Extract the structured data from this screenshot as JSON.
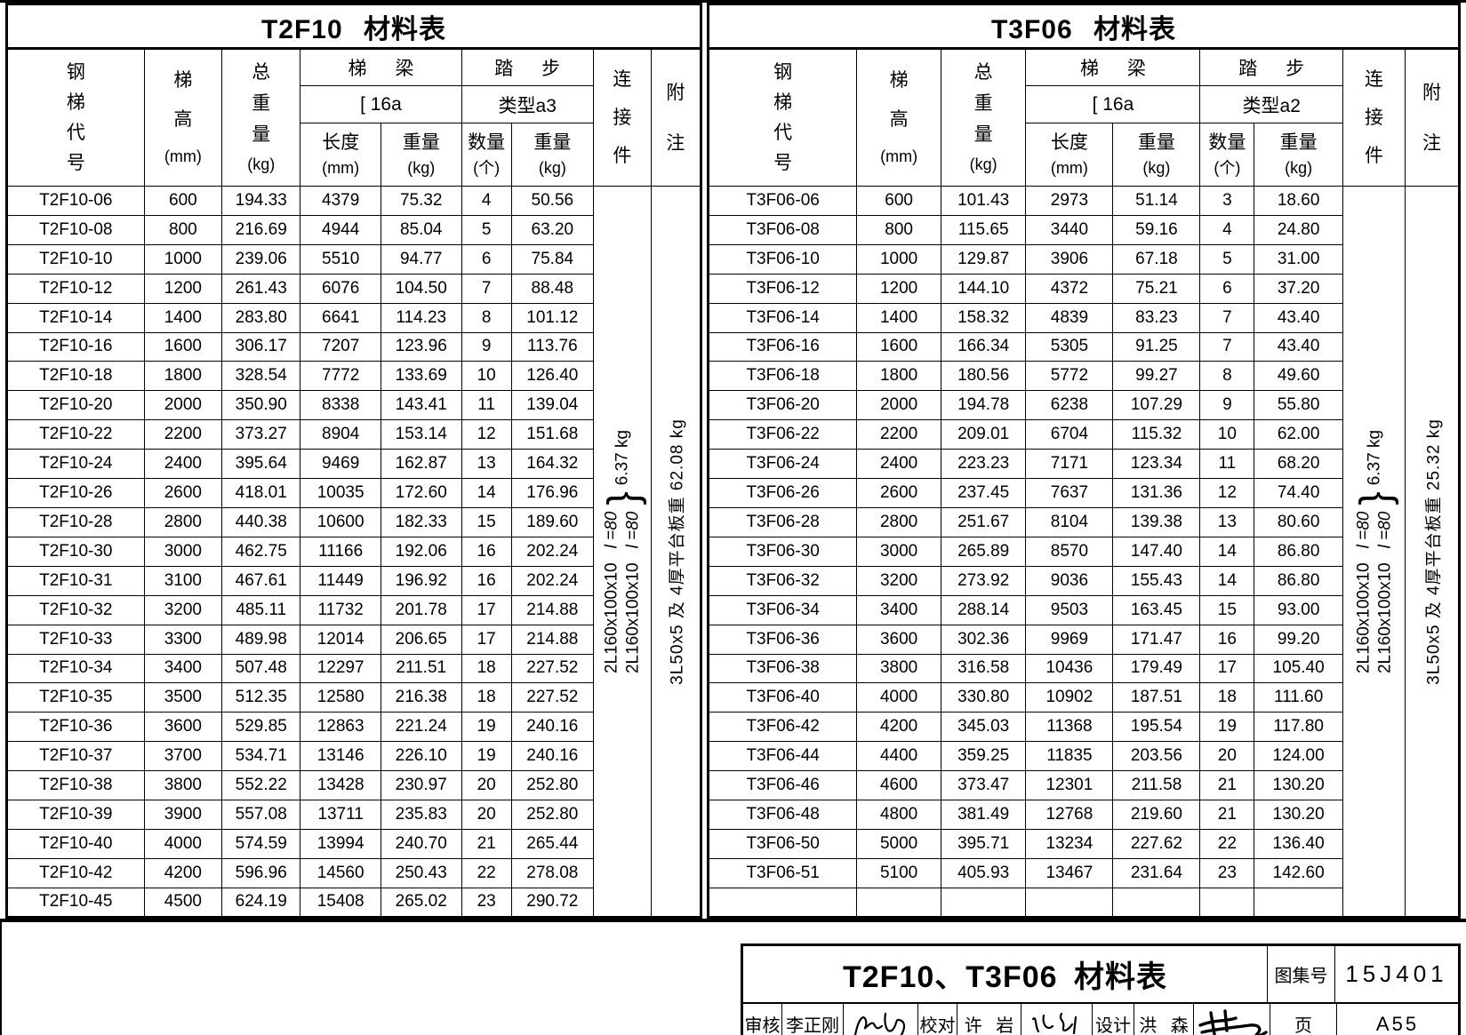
{
  "tables": [
    {
      "title": "T2F10 材料表",
      "header": {
        "code": "钢梯代号",
        "height": "梯高",
        "height_unit": "(mm)",
        "total": "总重量",
        "total_unit": "(kg)",
        "beam_group": "梯 梁",
        "beam_type": "[ 16a",
        "len": "长度",
        "len_unit": "(mm)",
        "beam_wt": "重量",
        "beam_wt_unit": "(kg)",
        "step_group": "踏 步",
        "step_type": "类型a3",
        "qty": "数量",
        "qty_unit": "(个)",
        "step_wt": "重量",
        "step_wt_unit": "(kg)",
        "conn": "连接件",
        "note": "附注"
      },
      "rows": [
        [
          "T2F10-06",
          "600",
          "194.33",
          "4379",
          "75.32",
          "4",
          "50.56"
        ],
        [
          "T2F10-08",
          "800",
          "216.69",
          "4944",
          "85.04",
          "5",
          "63.20"
        ],
        [
          "T2F10-10",
          "1000",
          "239.06",
          "5510",
          "94.77",
          "6",
          "75.84"
        ],
        [
          "T2F10-12",
          "1200",
          "261.43",
          "6076",
          "104.50",
          "7",
          "88.48"
        ],
        [
          "T2F10-14",
          "1400",
          "283.80",
          "6641",
          "114.23",
          "8",
          "101.12"
        ],
        [
          "T2F10-16",
          "1600",
          "306.17",
          "7207",
          "123.96",
          "9",
          "113.76"
        ],
        [
          "T2F10-18",
          "1800",
          "328.54",
          "7772",
          "133.69",
          "10",
          "126.40"
        ],
        [
          "T2F10-20",
          "2000",
          "350.90",
          "8338",
          "143.41",
          "11",
          "139.04"
        ],
        [
          "T2F10-22",
          "2200",
          "373.27",
          "8904",
          "153.14",
          "12",
          "151.68"
        ],
        [
          "T2F10-24",
          "2400",
          "395.64",
          "9469",
          "162.87",
          "13",
          "164.32"
        ],
        [
          "T2F10-26",
          "2600",
          "418.01",
          "10035",
          "172.60",
          "14",
          "176.96"
        ],
        [
          "T2F10-28",
          "2800",
          "440.38",
          "10600",
          "182.33",
          "15",
          "189.60"
        ],
        [
          "T2F10-30",
          "3000",
          "462.75",
          "11166",
          "192.06",
          "16",
          "202.24"
        ],
        [
          "T2F10-31",
          "3100",
          "467.61",
          "11449",
          "196.92",
          "16",
          "202.24"
        ],
        [
          "T2F10-32",
          "3200",
          "485.11",
          "11732",
          "201.78",
          "17",
          "214.88"
        ],
        [
          "T2F10-33",
          "3300",
          "489.98",
          "12014",
          "206.65",
          "17",
          "214.88"
        ],
        [
          "T2F10-34",
          "3400",
          "507.48",
          "12297",
          "211.51",
          "18",
          "227.52"
        ],
        [
          "T2F10-35",
          "3500",
          "512.35",
          "12580",
          "216.38",
          "18",
          "227.52"
        ],
        [
          "T2F10-36",
          "3600",
          "529.85",
          "12863",
          "221.24",
          "19",
          "240.16"
        ],
        [
          "T2F10-37",
          "3700",
          "534.71",
          "13146",
          "226.10",
          "19",
          "240.16"
        ],
        [
          "T2F10-38",
          "3800",
          "552.22",
          "13428",
          "230.97",
          "20",
          "252.80"
        ],
        [
          "T2F10-39",
          "3900",
          "557.08",
          "13711",
          "235.83",
          "20",
          "252.80"
        ],
        [
          "T2F10-40",
          "4000",
          "574.59",
          "13994",
          "240.70",
          "21",
          "265.44"
        ],
        [
          "T2F10-42",
          "4200",
          "596.96",
          "14560",
          "250.43",
          "22",
          "278.08"
        ],
        [
          "T2F10-45",
          "4500",
          "624.19",
          "15408",
          "265.02",
          "23",
          "290.72"
        ]
      ],
      "trailing_empty_rows": 0,
      "connector": {
        "angles": [
          "2L160x100x10",
          "2L160x100x10"
        ],
        "lens": [
          "l =80",
          "l =80"
        ],
        "brace": "}",
        "weight": "6.37 kg"
      },
      "note_text": "3L50x5 及 4厚平台板重 62.08 kg"
    },
    {
      "title": "T3F06 材料表",
      "header": {
        "code": "钢梯代号",
        "height": "梯高",
        "height_unit": "(mm)",
        "total": "总重量",
        "total_unit": "(kg)",
        "beam_group": "梯 梁",
        "beam_type": "[ 16a",
        "len": "长度",
        "len_unit": "(mm)",
        "beam_wt": "重量",
        "beam_wt_unit": "(kg)",
        "step_group": "踏 步",
        "step_type": "类型a2",
        "qty": "数量",
        "qty_unit": "(个)",
        "step_wt": "重量",
        "step_wt_unit": "(kg)",
        "conn": "连接件",
        "note": "附注"
      },
      "rows": [
        [
          "T3F06-06",
          "600",
          "101.43",
          "2973",
          "51.14",
          "3",
          "18.60"
        ],
        [
          "T3F06-08",
          "800",
          "115.65",
          "3440",
          "59.16",
          "4",
          "24.80"
        ],
        [
          "T3F06-10",
          "1000",
          "129.87",
          "3906",
          "67.18",
          "5",
          "31.00"
        ],
        [
          "T3F06-12",
          "1200",
          "144.10",
          "4372",
          "75.21",
          "6",
          "37.20"
        ],
        [
          "T3F06-14",
          "1400",
          "158.32",
          "4839",
          "83.23",
          "7",
          "43.40"
        ],
        [
          "T3F06-16",
          "1600",
          "166.34",
          "5305",
          "91.25",
          "7",
          "43.40"
        ],
        [
          "T3F06-18",
          "1800",
          "180.56",
          "5772",
          "99.27",
          "8",
          "49.60"
        ],
        [
          "T3F06-20",
          "2000",
          "194.78",
          "6238",
          "107.29",
          "9",
          "55.80"
        ],
        [
          "T3F06-22",
          "2200",
          "209.01",
          "6704",
          "115.32",
          "10",
          "62.00"
        ],
        [
          "T3F06-24",
          "2400",
          "223.23",
          "7171",
          "123.34",
          "11",
          "68.20"
        ],
        [
          "T3F06-26",
          "2600",
          "237.45",
          "7637",
          "131.36",
          "12",
          "74.40"
        ],
        [
          "T3F06-28",
          "2800",
          "251.67",
          "8104",
          "139.38",
          "13",
          "80.60"
        ],
        [
          "T3F06-30",
          "3000",
          "265.89",
          "8570",
          "147.40",
          "14",
          "86.80"
        ],
        [
          "T3F06-32",
          "3200",
          "273.92",
          "9036",
          "155.43",
          "14",
          "86.80"
        ],
        [
          "T3F06-34",
          "3400",
          "288.14",
          "9503",
          "163.45",
          "15",
          "93.00"
        ],
        [
          "T3F06-36",
          "3600",
          "302.36",
          "9969",
          "171.47",
          "16",
          "99.20"
        ],
        [
          "T3F06-38",
          "3800",
          "316.58",
          "10436",
          "179.49",
          "17",
          "105.40"
        ],
        [
          "T3F06-40",
          "4000",
          "330.80",
          "10902",
          "187.51",
          "18",
          "111.60"
        ],
        [
          "T3F06-42",
          "4200",
          "345.03",
          "11368",
          "195.54",
          "19",
          "117.80"
        ],
        [
          "T3F06-44",
          "4400",
          "359.25",
          "11835",
          "203.56",
          "20",
          "124.00"
        ],
        [
          "T3F06-46",
          "4600",
          "373.47",
          "12301",
          "211.58",
          "21",
          "130.20"
        ],
        [
          "T3F06-48",
          "4800",
          "381.49",
          "12768",
          "219.60",
          "21",
          "130.20"
        ],
        [
          "T3F06-50",
          "5000",
          "395.71",
          "13234",
          "227.62",
          "22",
          "136.40"
        ],
        [
          "T3F06-51",
          "5100",
          "405.93",
          "13467",
          "231.64",
          "23",
          "142.60"
        ]
      ],
      "trailing_empty_rows": 1,
      "connector": {
        "angles": [
          "2L160x100x10",
          "2L160x100x10"
        ],
        "lens": [
          "l =80",
          "l =80"
        ],
        "brace": "}",
        "weight": "6.37 kg"
      },
      "note_text": "3L50x5 及 4厚平台板重 25.32 kg"
    }
  ],
  "titleblock": {
    "title": "T2F10、T3F06 材料表",
    "atlas_label": "图集号",
    "atlas_no": "15J401",
    "page_label": "页",
    "page_no": "A55",
    "review_label": "审核",
    "review_name": "李正刚",
    "proof_label": "校对",
    "proof_name": "许 岩",
    "design_label": "设计",
    "design_name": "洪 森"
  }
}
